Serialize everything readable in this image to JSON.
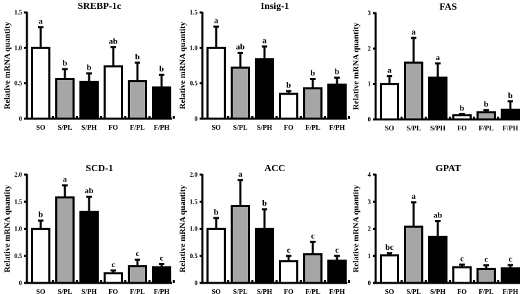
{
  "chart_data": [
    {
      "type": "bar",
      "title": "SREBP-1c",
      "ylabel": "Relative mRNA quantity",
      "ylim": [
        0,
        1.5
      ],
      "yticks": [
        "0",
        "0.5",
        "1.0",
        "1.5"
      ],
      "ytick_values": [
        0,
        0.5,
        1.0,
        1.5
      ],
      "categories": [
        "SO",
        "S/PL",
        "S/PH",
        "FO",
        "F/PL",
        "F/PH"
      ],
      "values": [
        1.0,
        0.56,
        0.52,
        0.74,
        0.53,
        0.44
      ],
      "errors": [
        0.29,
        0.14,
        0.12,
        0.27,
        0.26,
        0.18
      ],
      "letters": [
        "a",
        "b",
        "b",
        "ab",
        "b",
        "b"
      ]
    },
    {
      "type": "bar",
      "title": "Insig-1",
      "ylabel": "Relative mRNA quantity",
      "ylim": [
        0,
        1.5
      ],
      "yticks": [
        "0",
        "0.5",
        "1.0",
        "1.5"
      ],
      "ytick_values": [
        0,
        0.5,
        1.0,
        1.5
      ],
      "categories": [
        "SO",
        "S/PL",
        "S/PH",
        "FO",
        "F/PL",
        "F/PH"
      ],
      "values": [
        1.0,
        0.72,
        0.84,
        0.35,
        0.43,
        0.48
      ],
      "errors": [
        0.3,
        0.21,
        0.18,
        0.04,
        0.13,
        0.1
      ],
      "letters": [
        "a",
        "ab",
        "a",
        "b",
        "b",
        "b"
      ]
    },
    {
      "type": "bar",
      "title": "FAS",
      "ylabel": "Relative mRNA quantity",
      "ylim": [
        0,
        3
      ],
      "yticks": [
        "0",
        "1",
        "2",
        "3"
      ],
      "ytick_values": [
        0,
        1,
        2,
        3
      ],
      "categories": [
        "SO",
        "S/PL",
        "S/PH",
        "FO",
        "F/PL",
        "F/PH"
      ],
      "values": [
        1.0,
        1.6,
        1.18,
        0.12,
        0.2,
        0.27
      ],
      "errors": [
        0.22,
        0.7,
        0.4,
        0.03,
        0.06,
        0.24
      ],
      "letters": [
        "a",
        "a",
        "a",
        "b",
        "b",
        "b"
      ]
    },
    {
      "type": "bar",
      "title": "SCD-1",
      "ylabel": "Relative mRNA quantity",
      "ylim": [
        0,
        2.0
      ],
      "yticks": [
        "0",
        "0.5",
        "1.0",
        "1.5",
        "2.0"
      ],
      "ytick_values": [
        0,
        0.5,
        1.0,
        1.5,
        2.0
      ],
      "categories": [
        "SO",
        "S/PL",
        "S/PH",
        "FO",
        "F/PL",
        "F/PH"
      ],
      "values": [
        1.0,
        1.58,
        1.31,
        0.18,
        0.31,
        0.29
      ],
      "errors": [
        0.15,
        0.22,
        0.28,
        0.05,
        0.12,
        0.06
      ],
      "letters": [
        "b",
        "a",
        "ab",
        "c",
        "c",
        "c"
      ]
    },
    {
      "type": "bar",
      "title": "ACC",
      "ylabel": "Relative mRNA quantity",
      "ylim": [
        0,
        2.0
      ],
      "yticks": [
        "0",
        "0.5",
        "1.0",
        "1.5",
        "2.0"
      ],
      "ytick_values": [
        0,
        0.5,
        1.0,
        1.5,
        2.0
      ],
      "categories": [
        "SO",
        "S/PL",
        "S/PH",
        "FO",
        "F/PL",
        "F/PH"
      ],
      "values": [
        1.0,
        1.42,
        1.0,
        0.4,
        0.53,
        0.41
      ],
      "errors": [
        0.2,
        0.48,
        0.36,
        0.1,
        0.23,
        0.09
      ],
      "letters": [
        "b",
        "a",
        "b",
        "c",
        "c",
        "c"
      ]
    },
    {
      "type": "bar",
      "title": "GPAT",
      "ylabel": "Relative mRNA quantity",
      "ylim": [
        0,
        4
      ],
      "yticks": [
        "0",
        "1",
        "2",
        "3",
        "4"
      ],
      "ytick_values": [
        0,
        1,
        2,
        3,
        4
      ],
      "categories": [
        "SO",
        "S/PL",
        "S/PH",
        "FO",
        "F/PL",
        "F/PH"
      ],
      "values": [
        1.02,
        2.08,
        1.7,
        0.58,
        0.52,
        0.54
      ],
      "errors": [
        0.08,
        0.9,
        0.58,
        0.1,
        0.13,
        0.12
      ],
      "letters": [
        "bc",
        "a",
        "ab",
        "c",
        "c",
        "c"
      ]
    }
  ],
  "colors": {
    "bar_fills": [
      "#ffffff",
      "#a6a6a6",
      "#000000",
      "#ffffff",
      "#a6a6a6",
      "#000000"
    ],
    "stroke": "#000000"
  }
}
